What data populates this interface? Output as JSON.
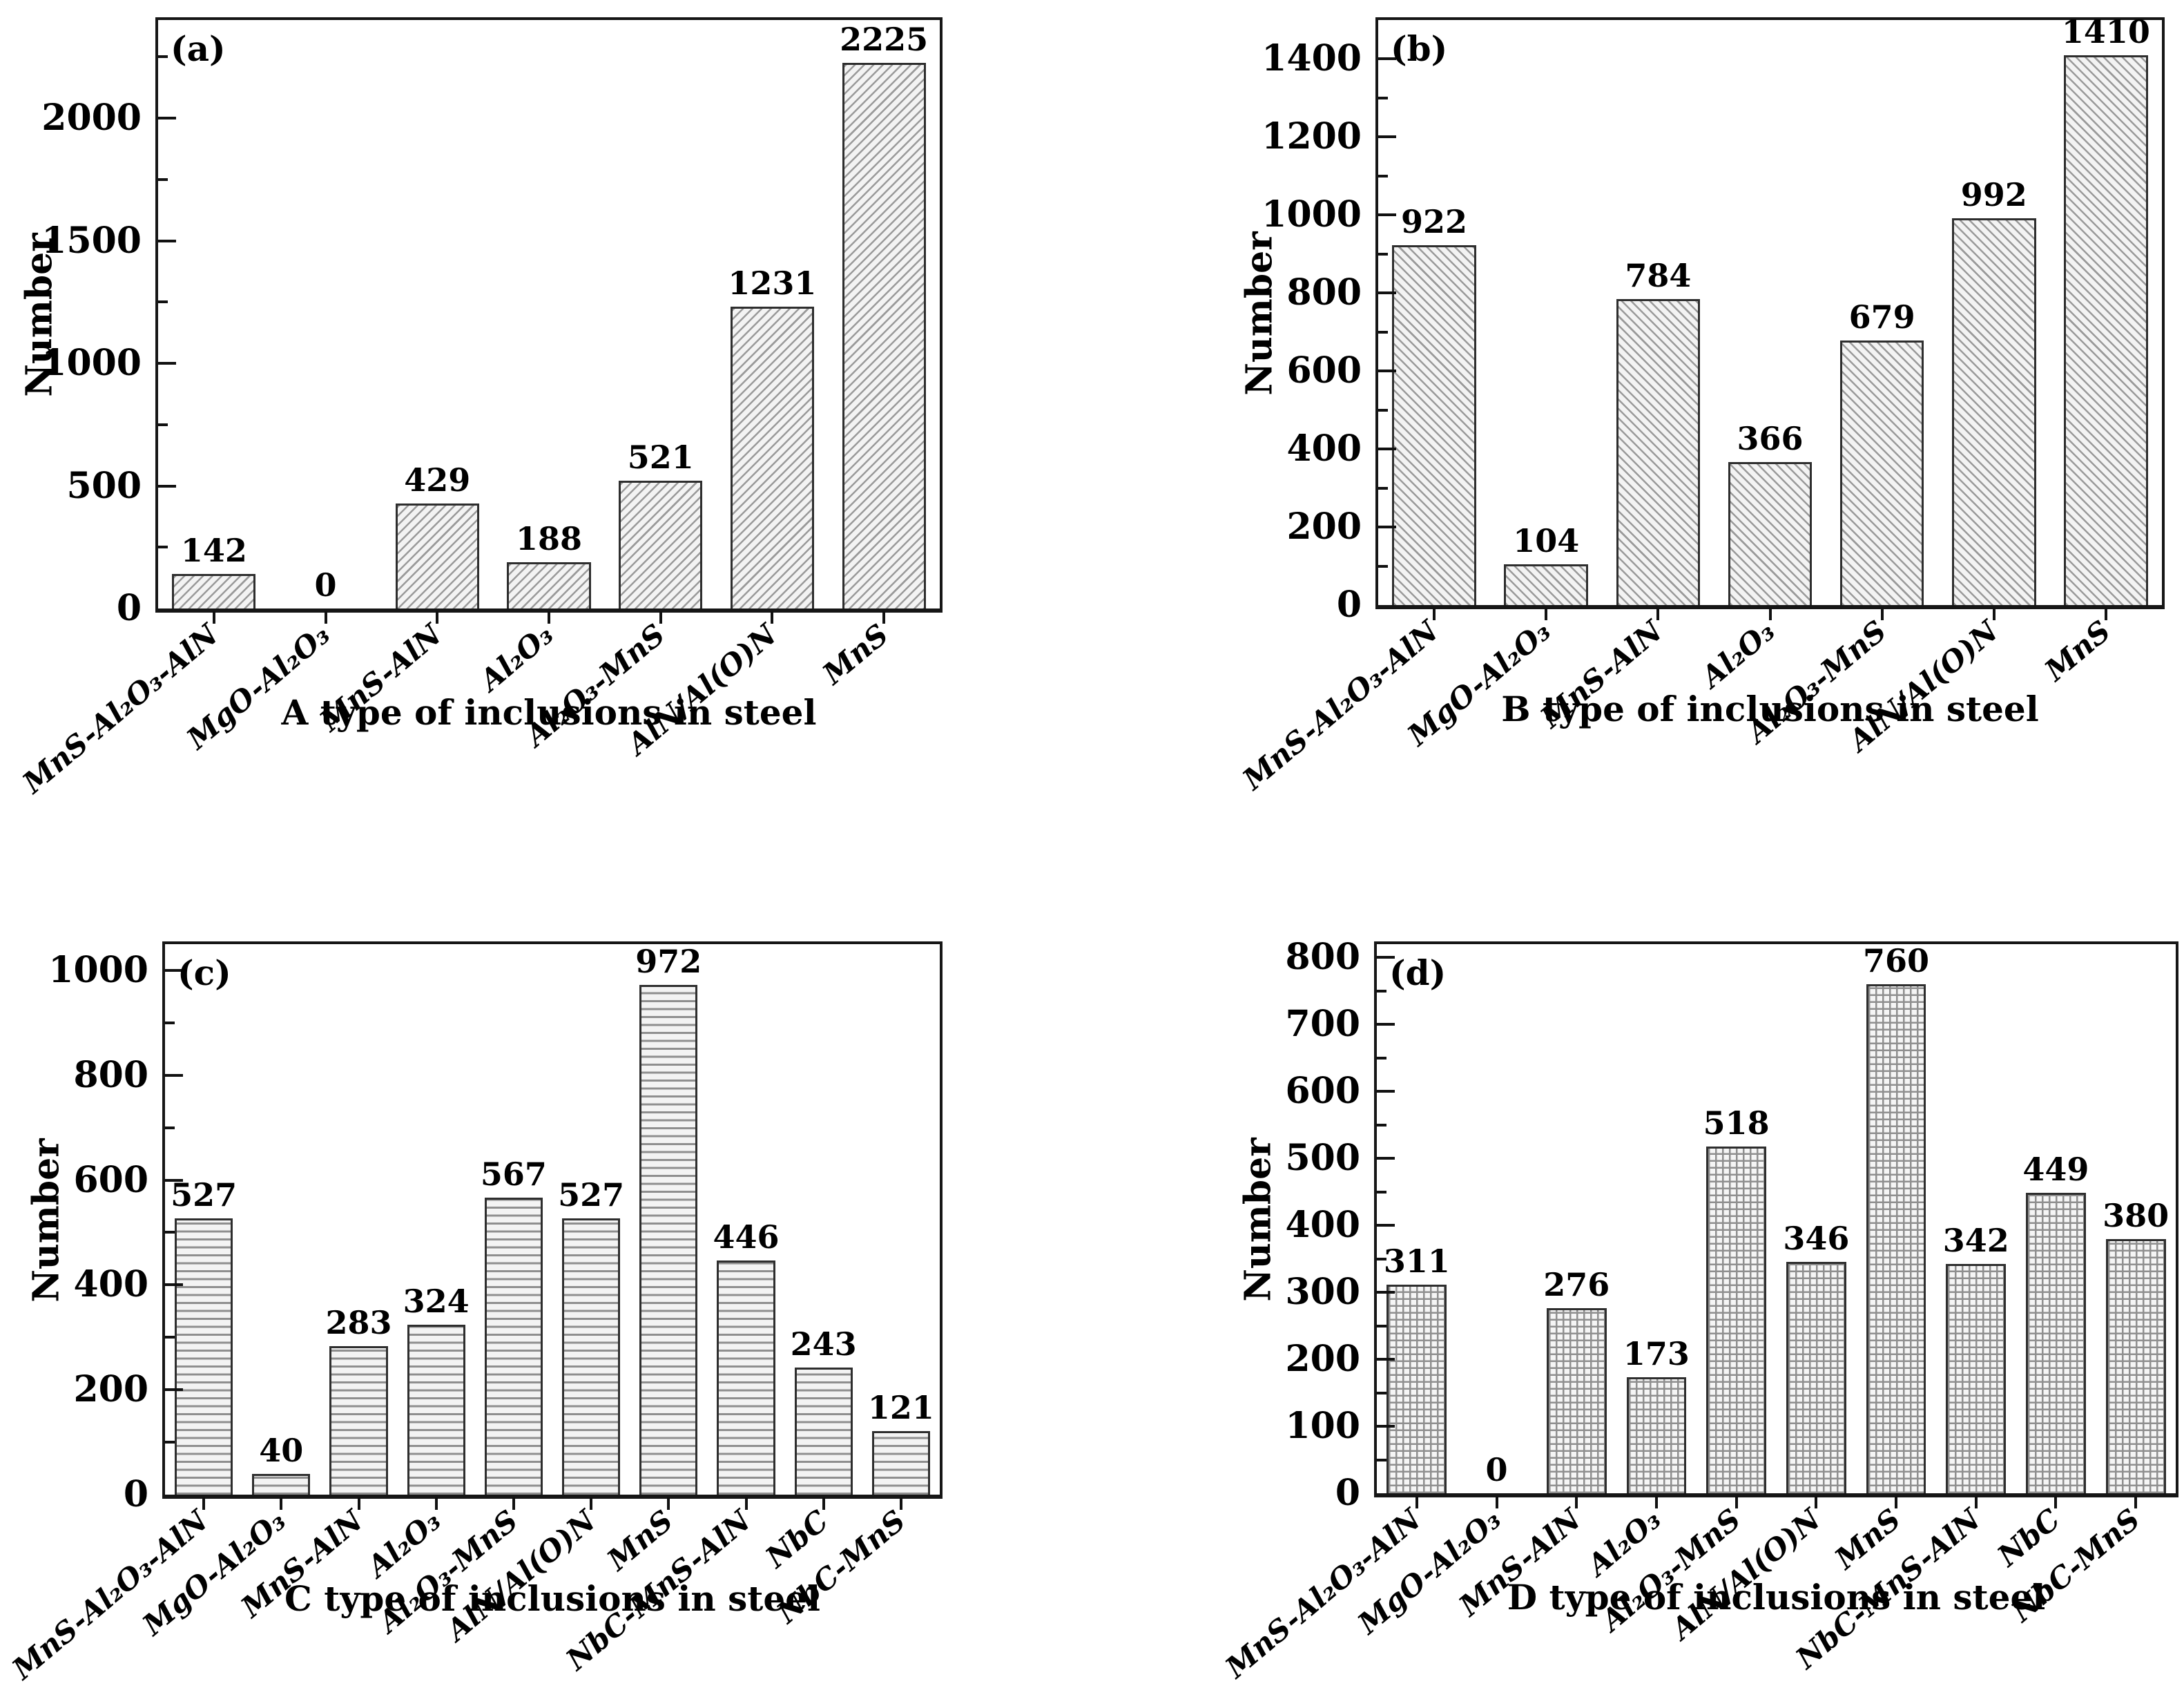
{
  "figure": {
    "background": "#ffffff",
    "axis_color": "#161616",
    "hatch_line_color": "#9a9a9a",
    "bar_fill_color": "#f3f3f3"
  },
  "chart_data": [
    {
      "id": "a",
      "panel_label": "(a)",
      "type": "bar",
      "xlabel": "A type of inclusions in steel",
      "ylabel": "Number",
      "categories": [
        "MnS-Al₂O₃-AlN",
        "MgO-Al₂O₃",
        "MnS-AlN",
        "Al₂O₃",
        "Al₂O₃-MnS",
        "AlN/Al(O)N",
        "MnS"
      ],
      "values": [
        142,
        0,
        429,
        188,
        521,
        1231,
        2225
      ],
      "ylim": [
        0,
        2400
      ],
      "yticks": [
        0,
        500,
        1000,
        1500,
        2000
      ],
      "yminor_step": 250,
      "grid": false,
      "legend": false,
      "hatch": "diagonal-up"
    },
    {
      "id": "b",
      "panel_label": "(b)",
      "type": "bar",
      "xlabel": "B type of inclusions in steel",
      "ylabel": "Number",
      "categories": [
        "MnS-Al₂O₃-AlN",
        "MgO-Al₂O₃",
        "MnS-AlN",
        "Al₂O₃",
        "Al₂O₃-MnS",
        "AlN/Al(O)N",
        "MnS"
      ],
      "values": [
        922,
        104,
        784,
        366,
        679,
        992,
        1410
      ],
      "ylim": [
        0,
        1500
      ],
      "yticks": [
        0,
        200,
        400,
        600,
        800,
        1000,
        1200,
        1400
      ],
      "yminor_step": 100,
      "grid": false,
      "legend": false,
      "hatch": "diagonal-down"
    },
    {
      "id": "c",
      "panel_label": "(c)",
      "type": "bar",
      "xlabel": "C type of inclusions in steel",
      "ylabel": "Number",
      "categories": [
        "MnS-Al₂O₃-AlN",
        "MgO-Al₂O₃",
        "MnS-AlN",
        "Al₂O₃",
        "Al₂O₃-MnS",
        "AlN/Al(O)N",
        "MnS",
        "NbC-MnS-AlN",
        "NbC",
        "NbC-MnS"
      ],
      "values": [
        527,
        40,
        283,
        324,
        567,
        527,
        972,
        446,
        243,
        121
      ],
      "ylim": [
        0,
        1050
      ],
      "yticks": [
        0,
        200,
        400,
        600,
        800,
        1000
      ],
      "yminor_step": 100,
      "grid": false,
      "legend": false,
      "hatch": "horizontal"
    },
    {
      "id": "d",
      "panel_label": "(d)",
      "type": "bar",
      "xlabel": "D type of inclusions in steel",
      "ylabel": "Number",
      "categories": [
        "MnS-Al₂O₃-AlN",
        "MgO-Al₂O₃",
        "MnS-AlN",
        "Al₂O₃",
        "Al₂O₃-MnS",
        "AlN/Al(O)N",
        "MnS",
        "NbC-MnS-AlN",
        "NbC",
        "NbC-MnS"
      ],
      "values": [
        311,
        0,
        276,
        173,
        518,
        346,
        760,
        342,
        449,
        380
      ],
      "ylim": [
        0,
        820
      ],
      "yticks": [
        0,
        100,
        200,
        300,
        400,
        500,
        600,
        700,
        800
      ],
      "yminor_step": 50,
      "grid": false,
      "legend": false,
      "hatch": "grid"
    }
  ]
}
